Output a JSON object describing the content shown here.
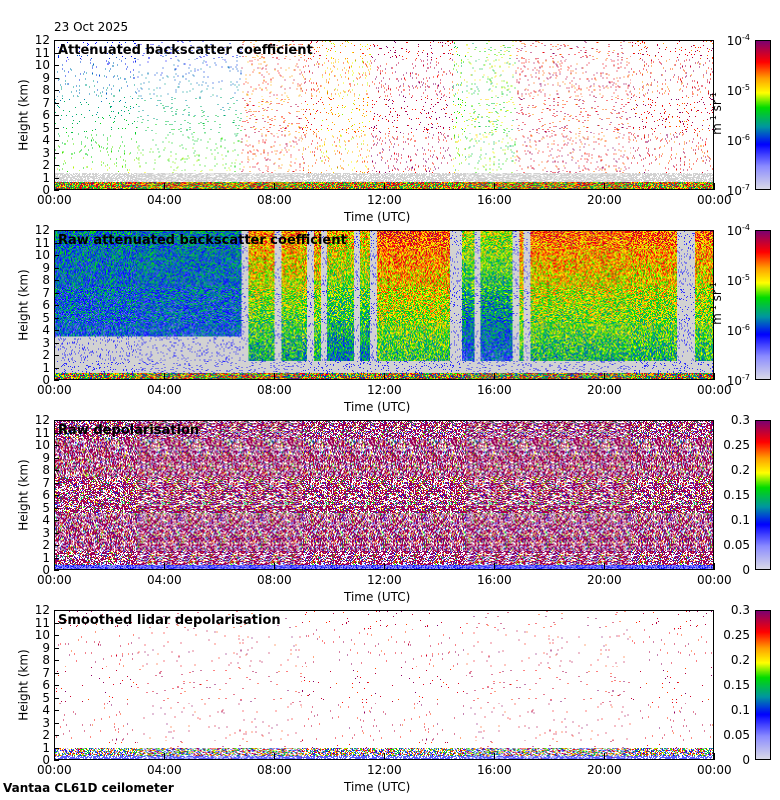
{
  "date_label": "23 Oct 2025",
  "footer": "Vantaa CL61D ceilometer",
  "chart_data": [
    {
      "type": "heatmap",
      "title": "Attenuated backscatter coefficient",
      "xlabel": "Time (UTC)",
      "ylabel": "Height (km)",
      "xticks": [
        "00:00",
        "04:00",
        "08:00",
        "12:00",
        "16:00",
        "20:00",
        "00:00"
      ],
      "ylim": [
        0,
        12
      ],
      "yticks": [
        "0",
        "1",
        "2",
        "3",
        "4",
        "5",
        "6",
        "7",
        "8",
        "9",
        "10",
        "11",
        "12"
      ],
      "colorbar": {
        "scale": "log",
        "range": [
          1e-07,
          0.0001
        ],
        "ticks": [
          {
            "base": "10",
            "exp": "-4"
          },
          {
            "base": "10",
            "exp": "-5"
          },
          {
            "base": "10",
            "exp": "-6"
          },
          {
            "base": "10",
            "exp": "-7"
          }
        ],
        "unit_a": "m",
        "unit_a_exp": "-1",
        "unit_b": " sr",
        "unit_b_exp": "-1"
      },
      "style": "sparse-backscatter"
    },
    {
      "type": "heatmap",
      "title": "Raw attenuated backscatter coefficient",
      "xlabel": "Time (UTC)",
      "ylabel": "Height (km)",
      "xticks": [
        "00:00",
        "04:00",
        "08:00",
        "12:00",
        "16:00",
        "20:00",
        "00:00"
      ],
      "ylim": [
        0,
        12
      ],
      "yticks": [
        "0",
        "1",
        "2",
        "3",
        "4",
        "5",
        "6",
        "7",
        "8",
        "9",
        "10",
        "11",
        "12"
      ],
      "colorbar": {
        "scale": "log",
        "range": [
          1e-07,
          0.0001
        ],
        "ticks": [
          {
            "base": "10",
            "exp": "-4"
          },
          {
            "base": "10",
            "exp": "-5"
          },
          {
            "base": "10",
            "exp": "-6"
          },
          {
            "base": "10",
            "exp": "-7"
          }
        ],
        "unit_a": "m",
        "unit_a_exp": "-1",
        "unit_b": " sr",
        "unit_b_exp": "-1"
      },
      "style": "raw-backscatter"
    },
    {
      "type": "heatmap",
      "title": "Raw depolarisation",
      "xlabel": "Time (UTC)",
      "ylabel": "Height (km)",
      "xticks": [
        "00:00",
        "04:00",
        "08:00",
        "12:00",
        "16:00",
        "20:00",
        "00:00"
      ],
      "ylim": [
        0,
        12
      ],
      "yticks": [
        "0",
        "1",
        "2",
        "3",
        "4",
        "5",
        "6",
        "7",
        "8",
        "9",
        "10",
        "11",
        "12"
      ],
      "colorbar": {
        "scale": "linear",
        "range": [
          0,
          0.3
        ],
        "ticks": [
          {
            "base": "0.3"
          },
          {
            "base": "0.25"
          },
          {
            "base": "0.2"
          },
          {
            "base": "0.15"
          },
          {
            "base": "0.1"
          },
          {
            "base": "0.05"
          },
          {
            "base": "0"
          }
        ]
      },
      "style": "raw-depol"
    },
    {
      "type": "heatmap",
      "title": "Smoothed lidar depolarisation",
      "xlabel": "Time (UTC)",
      "ylabel": "Height (km)",
      "xticks": [
        "00:00",
        "04:00",
        "08:00",
        "12:00",
        "16:00",
        "20:00",
        "00:00"
      ],
      "ylim": [
        0,
        12
      ],
      "yticks": [
        "0",
        "1",
        "2",
        "3",
        "4",
        "5",
        "6",
        "7",
        "8",
        "9",
        "10",
        "11",
        "12"
      ],
      "colorbar": {
        "scale": "linear",
        "range": [
          0,
          0.3
        ],
        "ticks": [
          {
            "base": "0.3"
          },
          {
            "base": "0.25"
          },
          {
            "base": "0.2"
          },
          {
            "base": "0.15"
          },
          {
            "base": "0.1"
          },
          {
            "base": "0.05"
          },
          {
            "base": "0"
          }
        ]
      },
      "style": "smooth-depol"
    }
  ]
}
